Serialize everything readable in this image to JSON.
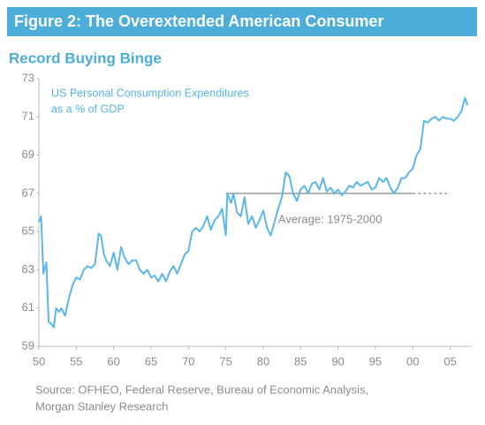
{
  "chart_data": {
    "type": "line",
    "title": "Figure 2: The Overextended American Consumer",
    "subtitle": "Record Buying Binge",
    "series_label": [
      "US Personal Consumption Expenditures",
      "as a % of GDP"
    ],
    "source": [
      "Source: OFHEO, Federal Reserve, Bureau of Economic Analysis,",
      "Morgan Stanley Research"
    ],
    "xlim": [
      1950,
      2008
    ],
    "ylim": [
      59,
      73
    ],
    "yticks": [
      59,
      61,
      63,
      65,
      67,
      69,
      71,
      73
    ],
    "xticks": [
      {
        "value": 1950,
        "label": "50"
      },
      {
        "value": 1955,
        "label": "55"
      },
      {
        "value": 1960,
        "label": "60"
      },
      {
        "value": 1965,
        "label": "65"
      },
      {
        "value": 1970,
        "label": "70"
      },
      {
        "value": 1975,
        "label": "75"
      },
      {
        "value": 1980,
        "label": "80"
      },
      {
        "value": 1985,
        "label": "85"
      },
      {
        "value": 1990,
        "label": "90"
      },
      {
        "value": 1995,
        "label": "95"
      },
      {
        "value": 2000,
        "label": "00"
      },
      {
        "value": 2005,
        "label": "05"
      }
    ],
    "color": "#5bb7e5",
    "average": {
      "label": "Average: 1975-2000",
      "value": 67,
      "from": 1975,
      "to": 2000,
      "dashed_to": 2005,
      "color": "#999999"
    },
    "x": [
      1950,
      1950.3,
      1950.6,
      1951,
      1951.3,
      1951.6,
      1952,
      1952.3,
      1952.7,
      1953,
      1953.5,
      1954,
      1954.5,
      1955,
      1955.5,
      1956,
      1956.5,
      1957,
      1957.5,
      1958,
      1958.3,
      1958.7,
      1959,
      1959.5,
      1960,
      1960.5,
      1961,
      1961.5,
      1962,
      1962.5,
      1963,
      1963.5,
      1964,
      1964.5,
      1965,
      1965.5,
      1966,
      1966.5,
      1967,
      1967.5,
      1968,
      1968.5,
      1969,
      1969.5,
      1970,
      1970.5,
      1971,
      1971.5,
      1972,
      1972.5,
      1973,
      1973.5,
      1974,
      1974.5,
      1975,
      1975.2,
      1975.7,
      1976,
      1976.5,
      1977,
      1977.5,
      1978,
      1978.5,
      1979,
      1979.5,
      1980,
      1980.5,
      1981,
      1981.5,
      1982,
      1982.5,
      1983,
      1983.5,
      1984,
      1984.5,
      1985,
      1985.5,
      1986,
      1986.5,
      1987,
      1987.5,
      1988,
      1988.5,
      1989,
      1989.5,
      1990,
      1990.5,
      1991,
      1991.5,
      1992,
      1992.5,
      1993,
      1993.5,
      1994,
      1994.5,
      1995,
      1995.5,
      1996,
      1996.5,
      1997,
      1997.5,
      1998,
      1998.5,
      1999,
      1999.5,
      2000,
      2000.5,
      2001,
      2001.5,
      2002,
      2002.5,
      2003,
      2003.5,
      2004,
      2004.5,
      2005,
      2005.5,
      2006,
      2006.5,
      2007,
      2007.3
    ],
    "values": [
      65.5,
      65.8,
      62.8,
      63.4,
      60.3,
      60.2,
      60.0,
      61.0,
      60.8,
      61.0,
      60.6,
      61.5,
      62.2,
      62.6,
      62.5,
      63.0,
      63.2,
      63.1,
      63.3,
      64.9,
      64.8,
      63.8,
      63.5,
      63.2,
      63.9,
      63.0,
      64.2,
      63.6,
      63.3,
      63.5,
      63.5,
      63.0,
      62.8,
      63.0,
      62.6,
      62.7,
      62.4,
      62.8,
      62.4,
      62.9,
      63.2,
      62.8,
      63.3,
      63.8,
      64.0,
      65.0,
      65.2,
      65.0,
      65.3,
      65.8,
      65.1,
      65.6,
      65.8,
      66.2,
      64.8,
      67.0,
      66.5,
      67.0,
      66.0,
      65.8,
      66.8,
      65.4,
      65.8,
      65.2,
      65.6,
      66.1,
      65.2,
      64.8,
      65.5,
      66.2,
      66.8,
      68.1,
      67.9,
      67.0,
      66.6,
      67.2,
      67.4,
      67.0,
      67.5,
      67.6,
      67.2,
      67.8,
      67.1,
      67.3,
      67.0,
      67.2,
      66.9,
      67.1,
      67.4,
      67.3,
      67.6,
      67.4,
      67.5,
      67.6,
      67.2,
      67.3,
      67.8,
      67.6,
      67.8,
      67.3,
      67.0,
      67.3,
      67.8,
      67.8,
      68.1,
      68.3,
      69.0,
      69.3,
      70.8,
      70.7,
      70.9,
      71.0,
      70.8,
      71.0,
      70.9,
      70.9,
      70.8,
      71.0,
      71.3,
      72.0,
      71.6
    ]
  }
}
